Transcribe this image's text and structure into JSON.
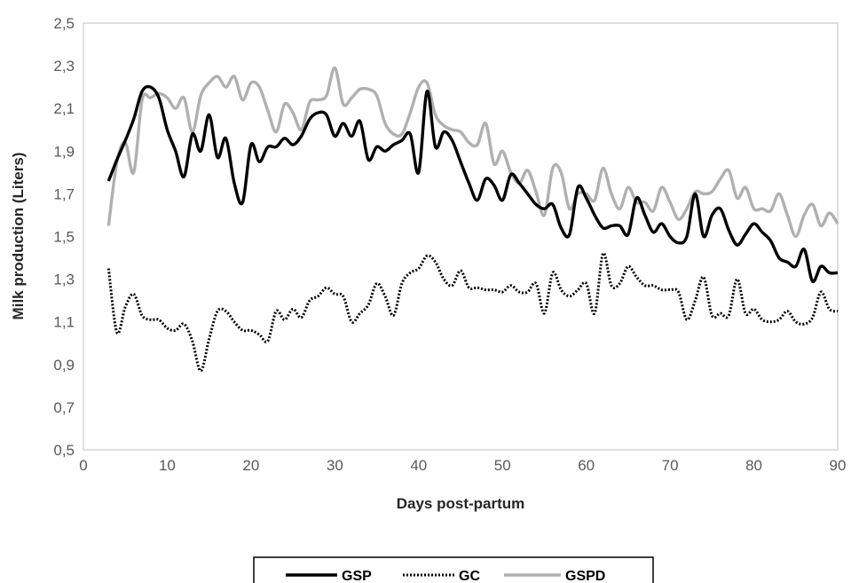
{
  "chart_data": {
    "type": "line",
    "xlabel": "Days post-partum",
    "ylabel": "Milk production (Liters)",
    "xlim": [
      0,
      90
    ],
    "ylim": [
      0.5,
      2.5
    ],
    "xticks": [
      0,
      10,
      20,
      30,
      40,
      50,
      60,
      70,
      80,
      90
    ],
    "xtick_labels": [
      "0",
      "10",
      "20",
      "30",
      "40",
      "50",
      "60",
      "70",
      "80",
      "90"
    ],
    "yticks": [
      0.5,
      0.7,
      0.9,
      1.1,
      1.3,
      1.5,
      1.7,
      1.9,
      2.1,
      2.3,
      2.5
    ],
    "ytick_labels": [
      "0,5",
      "0,7",
      "0,9",
      "1,1",
      "1,3",
      "1,5",
      "1,7",
      "1,9",
      "2,1",
      "2,3",
      "2,5"
    ],
    "grid": false,
    "legend_position": "bottom",
    "x": [
      3,
      4,
      5,
      6,
      7,
      8,
      9,
      10,
      11,
      12,
      13,
      14,
      15,
      16,
      17,
      18,
      19,
      20,
      21,
      22,
      23,
      24,
      25,
      26,
      27,
      28,
      29,
      30,
      31,
      32,
      33,
      34,
      35,
      36,
      37,
      38,
      39,
      40,
      41,
      42,
      43,
      44,
      45,
      46,
      47,
      48,
      49,
      50,
      51,
      52,
      53,
      54,
      55,
      56,
      57,
      58,
      59,
      60,
      61,
      62,
      63,
      64,
      65,
      66,
      67,
      68,
      69,
      70,
      71,
      72,
      73,
      74,
      75,
      76,
      77,
      78,
      79,
      80,
      81,
      82,
      83,
      84,
      85,
      86,
      87,
      88,
      89,
      90
    ],
    "series": [
      {
        "name": "GSP",
        "color": "#000000",
        "style": "solid",
        "values": [
          1.76,
          1.86,
          1.95,
          2.05,
          2.18,
          2.2,
          2.15,
          2.0,
          1.9,
          1.78,
          1.98,
          1.9,
          2.07,
          1.87,
          1.96,
          1.75,
          1.66,
          1.93,
          1.85,
          1.92,
          1.92,
          1.96,
          1.93,
          1.97,
          2.05,
          2.08,
          2.07,
          1.97,
          2.03,
          1.97,
          2.04,
          1.86,
          1.92,
          1.9,
          1.93,
          1.95,
          1.98,
          1.8,
          2.18,
          1.92,
          1.99,
          1.95,
          1.85,
          1.75,
          1.67,
          1.77,
          1.74,
          1.67,
          1.79,
          1.75,
          1.7,
          1.65,
          1.63,
          1.65,
          1.54,
          1.51,
          1.73,
          1.68,
          1.6,
          1.54,
          1.55,
          1.55,
          1.51,
          1.68,
          1.6,
          1.52,
          1.56,
          1.5,
          1.47,
          1.5,
          1.7,
          1.5,
          1.6,
          1.63,
          1.53,
          1.46,
          1.51,
          1.56,
          1.52,
          1.48,
          1.4,
          1.38,
          1.36,
          1.44,
          1.29,
          1.36,
          1.33,
          1.33
        ]
      },
      {
        "name": "GC",
        "color": "#000000",
        "style": "dotted",
        "values": [
          1.35,
          1.05,
          1.17,
          1.23,
          1.13,
          1.11,
          1.11,
          1.07,
          1.06,
          1.09,
          1.01,
          0.87,
          1.02,
          1.15,
          1.15,
          1.1,
          1.06,
          1.06,
          1.04,
          1.01,
          1.15,
          1.11,
          1.16,
          1.12,
          1.2,
          1.22,
          1.26,
          1.23,
          1.22,
          1.1,
          1.14,
          1.18,
          1.28,
          1.22,
          1.13,
          1.28,
          1.33,
          1.35,
          1.41,
          1.38,
          1.3,
          1.27,
          1.34,
          1.26,
          1.26,
          1.25,
          1.25,
          1.24,
          1.27,
          1.24,
          1.24,
          1.28,
          1.14,
          1.33,
          1.25,
          1.22,
          1.25,
          1.28,
          1.14,
          1.42,
          1.27,
          1.28,
          1.36,
          1.31,
          1.27,
          1.27,
          1.25,
          1.25,
          1.24,
          1.11,
          1.2,
          1.31,
          1.13,
          1.14,
          1.13,
          1.3,
          1.14,
          1.16,
          1.11,
          1.1,
          1.11,
          1.15,
          1.1,
          1.09,
          1.12,
          1.24,
          1.16,
          1.15
        ]
      },
      {
        "name": "GSPD",
        "color": "#b0b0b0",
        "style": "solid",
        "values": [
          1.55,
          1.85,
          1.94,
          1.8,
          2.14,
          2.15,
          2.17,
          2.15,
          2.1,
          2.15,
          1.99,
          2.16,
          2.22,
          2.25,
          2.2,
          2.25,
          2.14,
          2.22,
          2.2,
          2.09,
          1.99,
          2.12,
          2.08,
          2.0,
          2.13,
          2.14,
          2.16,
          2.29,
          2.12,
          2.15,
          2.19,
          2.19,
          2.16,
          2.03,
          1.98,
          1.98,
          2.08,
          2.2,
          2.22,
          2.07,
          2.02,
          2.0,
          1.99,
          1.94,
          1.93,
          2.03,
          1.84,
          1.9,
          1.8,
          1.75,
          1.81,
          1.71,
          1.6,
          1.82,
          1.8,
          1.63,
          1.7,
          1.7,
          1.67,
          1.82,
          1.7,
          1.63,
          1.73,
          1.66,
          1.66,
          1.62,
          1.73,
          1.66,
          1.58,
          1.63,
          1.71,
          1.7,
          1.71,
          1.77,
          1.81,
          1.68,
          1.73,
          1.63,
          1.63,
          1.62,
          1.7,
          1.6,
          1.5,
          1.6,
          1.65,
          1.55,
          1.61,
          1.56
        ]
      }
    ]
  }
}
